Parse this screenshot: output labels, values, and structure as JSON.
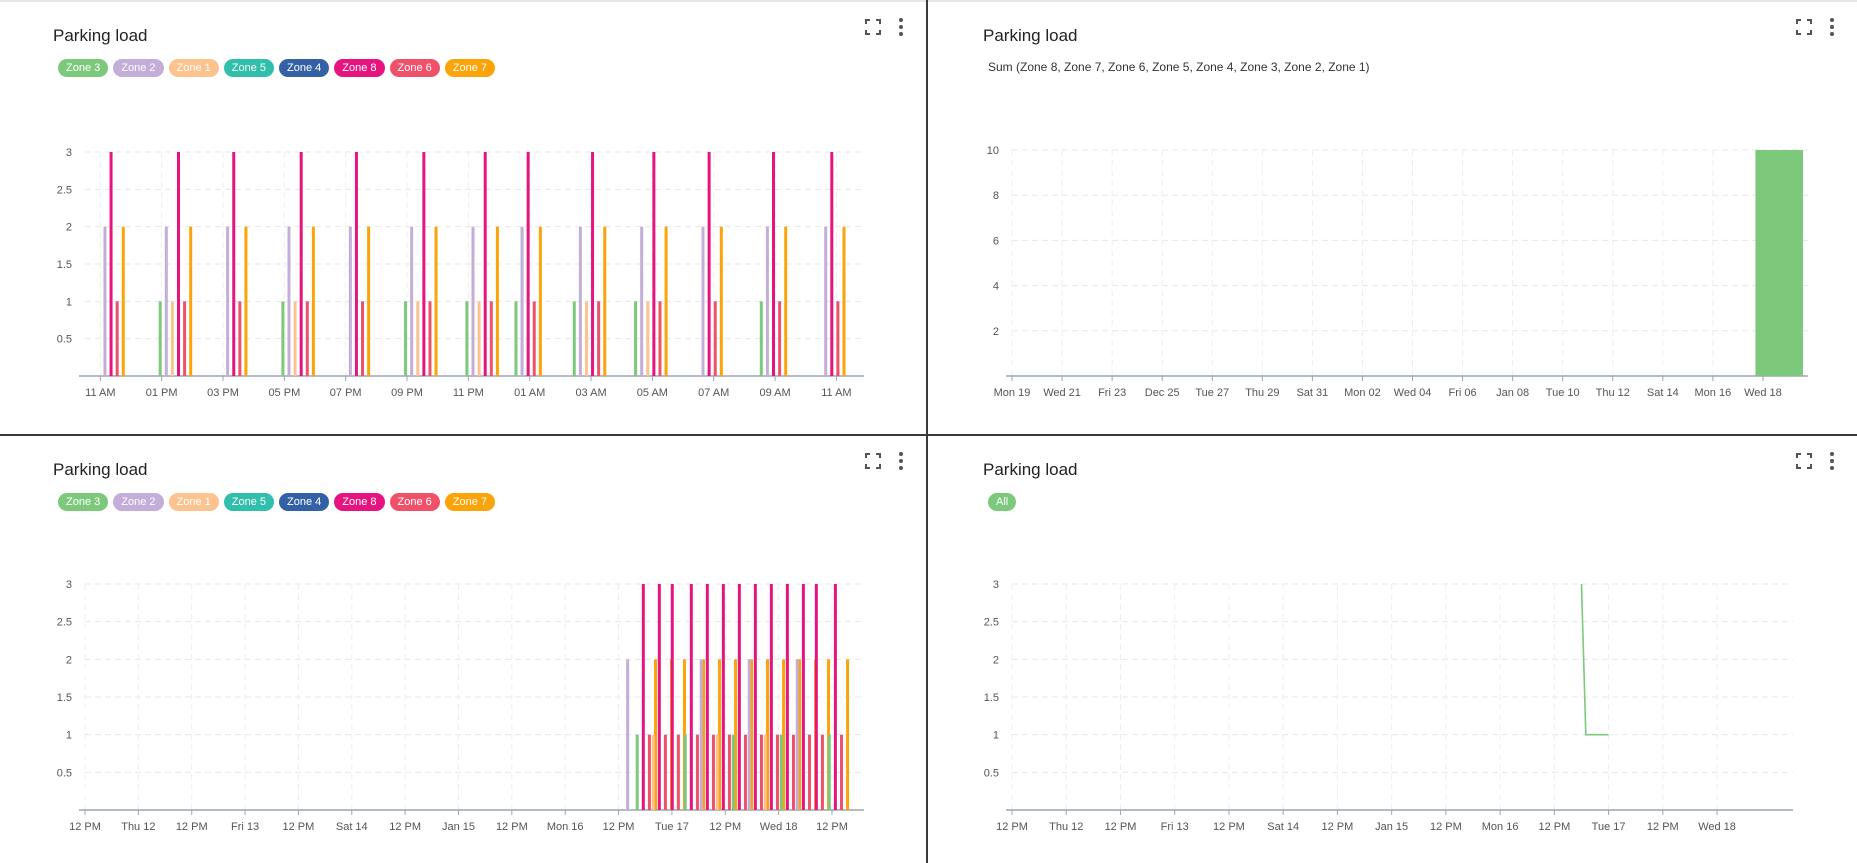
{
  "colors": {
    "Zone 3": "#7cc97c",
    "Zone 2": "#c2aed8",
    "Zone 1": "#fdc38f",
    "Zone 5": "#2fbfab",
    "Zone 4": "#3461a5",
    "Zone 8": "#e6147e",
    "Zone 6": "#f0516a",
    "Zone 7": "#fba40a",
    "All": "#7cc97c"
  },
  "icons": {
    "fullscreen": "fullscreen-icon",
    "menu": "more-vertical-icon"
  },
  "panels": [
    {
      "title": "Parking load",
      "legend": [
        "Zone 3",
        "Zone 2",
        "Zone 1",
        "Zone 5",
        "Zone 4",
        "Zone 8",
        "Zone 6",
        "Zone 7"
      ]
    },
    {
      "title": "Parking load",
      "sum_label": "Sum (Zone 8, Zone 7, Zone 6, Zone 5, Zone 4, Zone 3, Zone 2, Zone 1)"
    },
    {
      "title": "Parking load",
      "legend": [
        "Zone 3",
        "Zone 2",
        "Zone 1",
        "Zone 5",
        "Zone 4",
        "Zone 8",
        "Zone 6",
        "Zone 7"
      ]
    },
    {
      "title": "Parking load",
      "legend": [
        "All"
      ]
    }
  ],
  "chart_data": [
    {
      "type": "bar",
      "title": "Parking load",
      "ylim": [
        0,
        3
      ],
      "yticks": [
        0.5,
        1,
        1.5,
        2,
        2.5,
        3
      ],
      "x_range": [
        0,
        25.4
      ],
      "xticks": [
        {
          "x": 0.5,
          "label": "11 AM"
        },
        {
          "x": 2.5,
          "label": "01 PM"
        },
        {
          "x": 4.5,
          "label": "03 PM"
        },
        {
          "x": 6.5,
          "label": "05 PM"
        },
        {
          "x": 8.5,
          "label": "07 PM"
        },
        {
          "x": 10.5,
          "label": "09 PM"
        },
        {
          "x": 12.5,
          "label": "11 PM"
        },
        {
          "x": 14.5,
          "label": "01 AM"
        },
        {
          "x": 16.5,
          "label": "03 AM"
        },
        {
          "x": 18.5,
          "label": "05 AM"
        },
        {
          "x": 20.5,
          "label": "07 AM"
        },
        {
          "x": 22.5,
          "label": "09 AM"
        },
        {
          "x": 24.5,
          "label": "11 AM"
        }
      ],
      "groups": [
        {
          "x": 1,
          "values": {
            "Zone 2": 2,
            "Zone 8": 3,
            "Zone 6": 1,
            "Zone 7": 2
          }
        },
        {
          "x": 3,
          "values": {
            "Zone 3": 1,
            "Zone 2": 2,
            "Zone 1": 1,
            "Zone 8": 3,
            "Zone 6": 1,
            "Zone 7": 2
          }
        },
        {
          "x": 5,
          "values": {
            "Zone 2": 2,
            "Zone 8": 3,
            "Zone 6": 1,
            "Zone 7": 2
          }
        },
        {
          "x": 7,
          "values": {
            "Zone 3": 1,
            "Zone 2": 2,
            "Zone 1": 1,
            "Zone 8": 3,
            "Zone 6": 1,
            "Zone 7": 2
          }
        },
        {
          "x": 9,
          "values": {
            "Zone 2": 2,
            "Zone 8": 3,
            "Zone 6": 1,
            "Zone 7": 2
          }
        },
        {
          "x": 11,
          "values": {
            "Zone 3": 1,
            "Zone 2": 2,
            "Zone 1": 1,
            "Zone 8": 3,
            "Zone 6": 1,
            "Zone 7": 2
          }
        },
        {
          "x": 13,
          "values": {
            "Zone 3": 1,
            "Zone 2": 2,
            "Zone 1": 1,
            "Zone 8": 3,
            "Zone 6": 1,
            "Zone 7": 2
          }
        },
        {
          "x": 14.5,
          "values": {
            "Zone 3": 1,
            "Zone 2": 2,
            "Zone 8": 3,
            "Zone 6": 1,
            "Zone 7": 2
          }
        },
        {
          "x": 16.5,
          "values": {
            "Zone 3": 1,
            "Zone 2": 2,
            "Zone 1": 1,
            "Zone 8": 3,
            "Zone 6": 1,
            "Zone 7": 2
          }
        },
        {
          "x": 18.5,
          "values": {
            "Zone 3": 1,
            "Zone 2": 2,
            "Zone 1": 1,
            "Zone 8": 3,
            "Zone 6": 1,
            "Zone 7": 2
          }
        },
        {
          "x": 20.5,
          "values": {
            "Zone 2": 2,
            "Zone 8": 3,
            "Zone 6": 1,
            "Zone 7": 2
          }
        },
        {
          "x": 22.5,
          "values": {
            "Zone 3": 1,
            "Zone 2": 2,
            "Zone 8": 3,
            "Zone 6": 1,
            "Zone 7": 2
          }
        },
        {
          "x": 24.5,
          "values": {
            "Zone 2": 2,
            "Zone 8": 3,
            "Zone 6": 1,
            "Zone 7": 2
          }
        }
      ]
    },
    {
      "type": "area",
      "title": "Sum (Zone 8, Zone 7, Zone 6, Zone 5, Zone 4, Zone 3, Zone 2, Zone 1)",
      "ylim": [
        0,
        10
      ],
      "yticks": [
        2,
        4,
        6,
        8,
        10
      ],
      "x_range": [
        0,
        31.8
      ],
      "xticks": [
        {
          "x": 0,
          "label": "Mon 19"
        },
        {
          "x": 2,
          "label": "Wed 21"
        },
        {
          "x": 4,
          "label": "Fri 23"
        },
        {
          "x": 6,
          "label": "Dec 25"
        },
        {
          "x": 8,
          "label": "Tue 27"
        },
        {
          "x": 10,
          "label": "Thu 29"
        },
        {
          "x": 12,
          "label": "Sat 31"
        },
        {
          "x": 14,
          "label": "Mon 02"
        },
        {
          "x": 16,
          "label": "Wed 04"
        },
        {
          "x": 18,
          "label": "Fri 06"
        },
        {
          "x": 20,
          "label": "Jan 08"
        },
        {
          "x": 22,
          "label": "Tue 10"
        },
        {
          "x": 24,
          "label": "Thu 12"
        },
        {
          "x": 26,
          "label": "Sat 14"
        },
        {
          "x": 28,
          "label": "Mon 16"
        },
        {
          "x": 30,
          "label": "Wed 18"
        }
      ],
      "series": [
        {
          "name": "Sum (Zone 8, Zone 7, Zone 6, Zone 5, Zone 4, Zone 3, Zone 2, Zone 1)",
          "x": [
            29.7,
            31.6
          ],
          "values": [
            10,
            10
          ],
          "color": "#7cc97c"
        }
      ]
    },
    {
      "type": "bar",
      "title": "Parking load",
      "ylim": [
        0,
        3
      ],
      "yticks": [
        0.5,
        1,
        1.5,
        2,
        2.5,
        3
      ],
      "x_range": [
        0,
        14.6
      ],
      "xticks": [
        {
          "x": 0,
          "label": "12 PM"
        },
        {
          "x": 1,
          "label": "Thu 12"
        },
        {
          "x": 2,
          "label": "12 PM"
        },
        {
          "x": 3,
          "label": "Fri 13"
        },
        {
          "x": 4,
          "label": "12 PM"
        },
        {
          "x": 5,
          "label": "Sat 14"
        },
        {
          "x": 6,
          "label": "12 PM"
        },
        {
          "x": 7,
          "label": "Jan 15"
        },
        {
          "x": 8,
          "label": "12 PM"
        },
        {
          "x": 9,
          "label": "Mon 16"
        },
        {
          "x": 10,
          "label": "12 PM"
        },
        {
          "x": 11,
          "label": "Tue 17"
        },
        {
          "x": 12,
          "label": "12 PM"
        },
        {
          "x": 13,
          "label": "Wed 18"
        },
        {
          "x": 14,
          "label": "12 PM"
        }
      ],
      "groups": [
        {
          "x": 10.2,
          "values": {
            "Zone 2": 2
          }
        },
        {
          "x": 10.55,
          "values": {
            "Zone 3": 1,
            "Zone 8": 3,
            "Zone 6": 1,
            "Zone 7": 2
          }
        },
        {
          "x": 10.85,
          "values": {
            "Zone 1": 1,
            "Zone 8": 3,
            "Zone 6": 1,
            "Zone 7": 2
          }
        },
        {
          "x": 11.15,
          "values": {
            "Zone 8": 3,
            "Zone 6": 1,
            "Zone 7": 2
          }
        },
        {
          "x": 11.45,
          "values": {
            "Zone 3": 1,
            "Zone 8": 3,
            "Zone 6": 1,
            "Zone 7": 2
          }
        },
        {
          "x": 11.75,
          "values": {
            "Zone 2": 2,
            "Zone 8": 3,
            "Zone 6": 1,
            "Zone 7": 2
          }
        },
        {
          "x": 12.05,
          "values": {
            "Zone 1": 1,
            "Zone 8": 3,
            "Zone 6": 1,
            "Zone 7": 2
          }
        },
        {
          "x": 12.35,
          "values": {
            "Zone 3": 1,
            "Zone 8": 3,
            "Zone 6": 1,
            "Zone 7": 2
          }
        },
        {
          "x": 12.65,
          "values": {
            "Zone 2": 2,
            "Zone 8": 3,
            "Zone 6": 1,
            "Zone 7": 2
          }
        },
        {
          "x": 12.95,
          "values": {
            "Zone 1": 1,
            "Zone 8": 3,
            "Zone 6": 1,
            "Zone 7": 2
          }
        },
        {
          "x": 13.25,
          "values": {
            "Zone 3": 1,
            "Zone 8": 3,
            "Zone 6": 1,
            "Zone 7": 2
          }
        },
        {
          "x": 13.55,
          "values": {
            "Zone 2": 2,
            "Zone 8": 3,
            "Zone 6": 1,
            "Zone 7": 2
          }
        },
        {
          "x": 13.85,
          "values": {
            "Zone 8": 3,
            "Zone 6": 1,
            "Zone 7": 2
          }
        },
        {
          "x": 14.15,
          "values": {
            "Zone 3": 1,
            "Zone 8": 3,
            "Zone 6": 1,
            "Zone 7": 2
          }
        }
      ]
    },
    {
      "type": "line",
      "title": "Parking load",
      "ylim": [
        0,
        3
      ],
      "yticks": [
        0.5,
        1,
        1.5,
        2,
        2.5,
        3
      ],
      "x_range": [
        0,
        14.4
      ],
      "xticks": [
        {
          "x": 0,
          "label": "12 PM"
        },
        {
          "x": 1,
          "label": "Thu 12"
        },
        {
          "x": 2,
          "label": "12 PM"
        },
        {
          "x": 3,
          "label": "Fri 13"
        },
        {
          "x": 4,
          "label": "12 PM"
        },
        {
          "x": 5,
          "label": "Sat 14"
        },
        {
          "x": 6,
          "label": "12 PM"
        },
        {
          "x": 7,
          "label": "Jan 15"
        },
        {
          "x": 8,
          "label": "12 PM"
        },
        {
          "x": 9,
          "label": "Mon 16"
        },
        {
          "x": 10,
          "label": "12 PM"
        },
        {
          "x": 11,
          "label": "Tue 17"
        },
        {
          "x": 12,
          "label": "12 PM"
        },
        {
          "x": 13,
          "label": "Wed 18"
        }
      ],
      "series": [
        {
          "name": "All",
          "x": [
            10.5,
            10.58,
            11.0
          ],
          "values": [
            3,
            1,
            1
          ],
          "color": "#7cc97c"
        }
      ]
    }
  ]
}
